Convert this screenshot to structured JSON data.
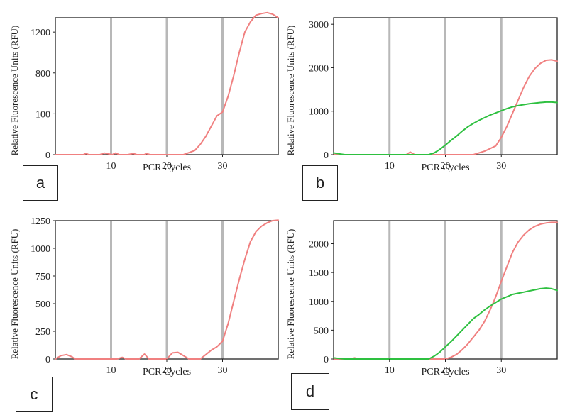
{
  "colors": {
    "red": "#f08080",
    "green": "#2ec040",
    "grid": "#b8b8b8",
    "frame": "#222222"
  },
  "chart_data": [
    {
      "type": "line",
      "panel_label": "a",
      "xlabel": "PCR Cycles",
      "ylabel": "Relative Fluorescence Units (RFU)",
      "x_ticks": [
        10,
        20,
        30
      ],
      "y_ticks": [
        "0",
        "100",
        "800",
        "1200"
      ],
      "y_scale": "nonlinear (ticks 0, 100, 800, 1200 evenly spaced)",
      "xlim": [
        0,
        40
      ],
      "grid": "vertical lines at 10, 20, 30",
      "series": [
        {
          "color": "#f08080",
          "points": [
            [
              0,
              0
            ],
            [
              5,
              0
            ],
            [
              5.5,
              3
            ],
            [
              6,
              0
            ],
            [
              8,
              0
            ],
            [
              8.8,
              4
            ],
            [
              9.5,
              2
            ],
            [
              10.2,
              0
            ],
            [
              10.8,
              4
            ],
            [
              11.5,
              0
            ],
            [
              13,
              0
            ],
            [
              14,
              3
            ],
            [
              14.6,
              0
            ],
            [
              16,
              0
            ],
            [
              16.3,
              3
            ],
            [
              17,
              0
            ],
            [
              23,
              0
            ],
            [
              24,
              5
            ],
            [
              25,
              10
            ],
            [
              26,
              25
            ],
            [
              27,
              45
            ],
            [
              28,
              70
            ],
            [
              29,
              95
            ],
            [
              30,
              130
            ],
            [
              31,
              400
            ],
            [
              32,
              750
            ],
            [
              33,
              1000
            ],
            [
              34,
              1200
            ],
            [
              35,
              1300
            ],
            [
              36,
              1365
            ],
            [
              37,
              1380
            ],
            [
              38,
              1390
            ],
            [
              39,
              1375
            ],
            [
              40,
              1340
            ]
          ]
        }
      ]
    },
    {
      "type": "line",
      "panel_label": "b",
      "xlabel": "PCR Cycles",
      "ylabel": "Relative Fluorescence Units (RFU)",
      "x_ticks": [
        10,
        20,
        30
      ],
      "y_ticks": [
        0,
        1000,
        2000,
        3000
      ],
      "ylim": [
        0,
        3150
      ],
      "xlim": [
        0,
        40
      ],
      "grid": "vertical lines at 10, 20, 30",
      "series": [
        {
          "color": "#f08080",
          "points": [
            [
              0,
              0
            ],
            [
              13,
              0
            ],
            [
              13.7,
              60
            ],
            [
              14.5,
              0
            ],
            [
              25,
              0
            ],
            [
              27,
              80
            ],
            [
              29,
              200
            ],
            [
              30,
              400
            ],
            [
              31,
              650
            ],
            [
              32,
              950
            ],
            [
              33,
              1250
            ],
            [
              34,
              1550
            ],
            [
              35,
              1800
            ],
            [
              36,
              1980
            ],
            [
              37,
              2100
            ],
            [
              38,
              2170
            ],
            [
              39,
              2180
            ],
            [
              40,
              2150
            ]
          ]
        },
        {
          "color": "#2ec040",
          "points": [
            [
              0,
              40
            ],
            [
              1,
              20
            ],
            [
              2,
              0
            ],
            [
              17,
              0
            ],
            [
              18,
              40
            ],
            [
              19,
              120
            ],
            [
              20,
              220
            ],
            [
              21,
              330
            ],
            [
              22,
              430
            ],
            [
              23,
              540
            ],
            [
              24,
              640
            ],
            [
              25,
              720
            ],
            [
              26,
              790
            ],
            [
              27,
              850
            ],
            [
              28,
              910
            ],
            [
              29,
              960
            ],
            [
              30,
              1010
            ],
            [
              31,
              1060
            ],
            [
              32,
              1100
            ],
            [
              33,
              1130
            ],
            [
              34,
              1150
            ],
            [
              35,
              1170
            ],
            [
              36,
              1185
            ],
            [
              37,
              1200
            ],
            [
              38,
              1210
            ],
            [
              39,
              1210
            ],
            [
              40,
              1200
            ]
          ]
        }
      ]
    },
    {
      "type": "line",
      "panel_label": "c",
      "xlabel": "PCR Cycles",
      "ylabel": "Relative Fluorescence Units (RFU)",
      "x_ticks": [
        10,
        20,
        30
      ],
      "y_ticks": [
        0,
        250,
        500,
        750,
        1000,
        1250
      ],
      "ylim": [
        0,
        1250
      ],
      "xlim": [
        0,
        40
      ],
      "grid": "vertical lines at 10, 20, 30",
      "series": [
        {
          "color": "#f08080",
          "points": [
            [
              0,
              0
            ],
            [
              1,
              30
            ],
            [
              2,
              40
            ],
            [
              3,
              20
            ],
            [
              3.5,
              0
            ],
            [
              11,
              0
            ],
            [
              12,
              15
            ],
            [
              12.7,
              0
            ],
            [
              15,
              0
            ],
            [
              16,
              45
            ],
            [
              16.8,
              0
            ],
            [
              20,
              0
            ],
            [
              21,
              55
            ],
            [
              22,
              60
            ],
            [
              23,
              30
            ],
            [
              24,
              0
            ],
            [
              26,
              0
            ],
            [
              27,
              40
            ],
            [
              28,
              80
            ],
            [
              29,
              110
            ],
            [
              30,
              160
            ],
            [
              31,
              320
            ],
            [
              32,
              520
            ],
            [
              33,
              720
            ],
            [
              34,
              900
            ],
            [
              35,
              1060
            ],
            [
              36,
              1150
            ],
            [
              37,
              1200
            ],
            [
              38,
              1230
            ],
            [
              39,
              1250
            ],
            [
              40,
              1255
            ]
          ]
        }
      ]
    },
    {
      "type": "line",
      "panel_label": "d",
      "xlabel": "PCR Cycles",
      "ylabel": "Relative Fluorescence Units (RFU)",
      "x_ticks": [
        10,
        20,
        30
      ],
      "y_ticks": [
        0,
        500,
        1000,
        1500,
        2000
      ],
      "ylim": [
        0,
        2400
      ],
      "xlim": [
        0,
        40
      ],
      "grid": "vertical lines at 10, 20, 30",
      "series": [
        {
          "color": "#f08080",
          "points": [
            [
              0,
              0
            ],
            [
              3,
              0
            ],
            [
              3.8,
              20
            ],
            [
              4.5,
              0
            ],
            [
              20,
              0
            ],
            [
              21,
              30
            ],
            [
              22,
              80
            ],
            [
              23,
              160
            ],
            [
              24,
              260
            ],
            [
              25,
              380
            ],
            [
              26,
              500
            ],
            [
              27,
              650
            ],
            [
              28,
              850
            ],
            [
              29,
              1080
            ],
            [
              30,
              1350
            ],
            [
              31,
              1600
            ],
            [
              32,
              1850
            ],
            [
              33,
              2030
            ],
            [
              34,
              2150
            ],
            [
              35,
              2240
            ],
            [
              36,
              2300
            ],
            [
              37,
              2340
            ],
            [
              38,
              2360
            ],
            [
              39,
              2370
            ],
            [
              40,
              2370
            ]
          ]
        },
        {
          "color": "#2ec040",
          "points": [
            [
              0,
              20
            ],
            [
              1,
              10
            ],
            [
              2,
              0
            ],
            [
              17,
              0
            ],
            [
              18,
              50
            ],
            [
              19,
              120
            ],
            [
              20,
              210
            ],
            [
              21,
              300
            ],
            [
              22,
              400
            ],
            [
              23,
              500
            ],
            [
              24,
              600
            ],
            [
              25,
              700
            ],
            [
              26,
              770
            ],
            [
              27,
              850
            ],
            [
              28,
              920
            ],
            [
              29,
              980
            ],
            [
              30,
              1040
            ],
            [
              31,
              1080
            ],
            [
              32,
              1120
            ],
            [
              33,
              1140
            ],
            [
              34,
              1160
            ],
            [
              35,
              1180
            ],
            [
              36,
              1200
            ],
            [
              37,
              1220
            ],
            [
              38,
              1230
            ],
            [
              39,
              1220
            ],
            [
              40,
              1190
            ]
          ]
        }
      ]
    }
  ]
}
